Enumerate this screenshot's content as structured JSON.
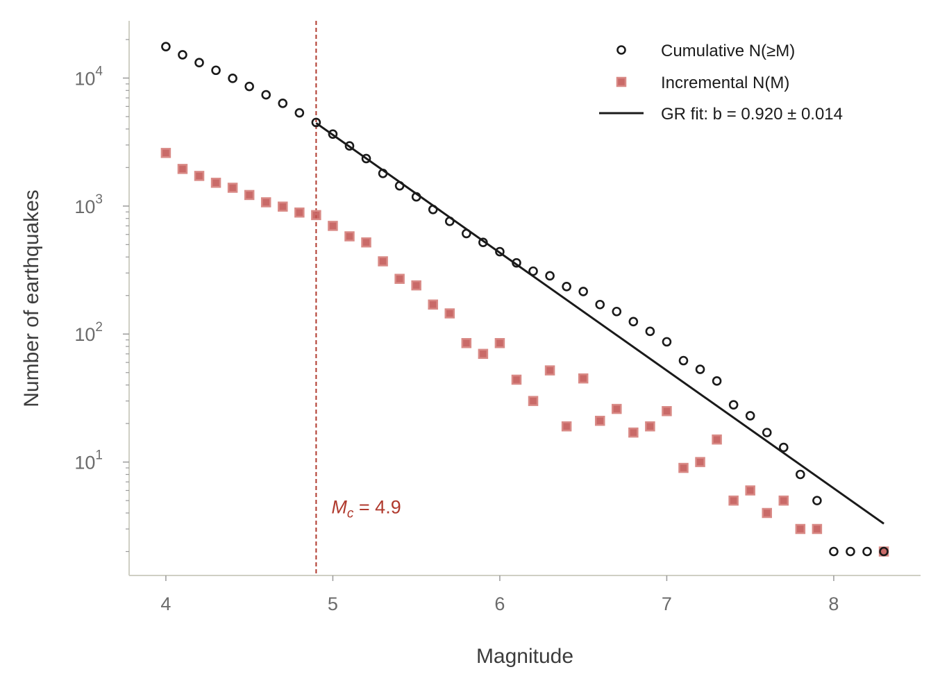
{
  "chart_data": {
    "type": "scatter",
    "title": "",
    "xlabel": "Magnitude",
    "ylabel": "Number of earthquakes",
    "xscale": "linear",
    "yscale": "log",
    "xlim": [
      3.78,
      8.52
    ],
    "ylim": [
      1.3,
      28000
    ],
    "xticks": [
      "4",
      "5",
      "6",
      "7",
      "8"
    ],
    "yticks": [
      "10",
      "10",
      "10",
      "10"
    ],
    "ytick_exponents": [
      "1",
      "2",
      "3",
      "4"
    ],
    "grid": false,
    "legend_position": "top-right",
    "series": [
      {
        "name": "Cumulative N(≥M)",
        "marker": "open-circle",
        "color": "#1a1a1a",
        "x": [
          4.0,
          4.1,
          4.2,
          4.3,
          4.4,
          4.5,
          4.6,
          4.7,
          4.8,
          4.9,
          5.0,
          5.1,
          5.2,
          5.3,
          5.4,
          5.5,
          5.6,
          5.7,
          5.8,
          5.9,
          6.0,
          6.1,
          6.2,
          6.3,
          6.4,
          6.5,
          6.6,
          6.7,
          6.8,
          6.9,
          7.0,
          7.1,
          7.2,
          7.3,
          7.4,
          7.5,
          7.6,
          7.7,
          7.8,
          7.9,
          8.0,
          8.1,
          8.2,
          8.3
        ],
        "y": [
          17600,
          15200,
          13200,
          11500,
          9950,
          8600,
          7400,
          6350,
          5350,
          4500,
          3650,
          2950,
          2350,
          1800,
          1440,
          1180,
          940,
          760,
          610,
          520,
          440,
          360,
          310,
          285,
          235,
          215,
          170,
          150,
          125,
          105,
          87,
          62,
          53,
          43,
          28,
          23,
          17,
          13,
          8,
          5,
          2,
          2,
          2,
          2
        ]
      },
      {
        "name": "Incremental N(M)",
        "marker": "square",
        "color": "#c0504d",
        "x": [
          4.0,
          4.1,
          4.2,
          4.3,
          4.4,
          4.5,
          4.6,
          4.7,
          4.8,
          4.9,
          5.0,
          5.1,
          5.2,
          5.3,
          5.4,
          5.5,
          5.6,
          5.7,
          5.8,
          5.9,
          6.0,
          6.1,
          6.2,
          6.3,
          6.4,
          6.5,
          6.6,
          6.7,
          6.8,
          6.9,
          7.0,
          7.1,
          7.2,
          7.3,
          7.4,
          7.5,
          7.6,
          7.7,
          7.8,
          7.9,
          8.3
        ],
        "y": [
          2600,
          1950,
          1720,
          1520,
          1390,
          1220,
          1070,
          990,
          890,
          850,
          700,
          580,
          520,
          370,
          270,
          240,
          170,
          145,
          85,
          70,
          85,
          44,
          30,
          52,
          19,
          45,
          21,
          26,
          17,
          19,
          25,
          9,
          10,
          15,
          5,
          6,
          4,
          5,
          3,
          3,
          2
        ]
      },
      {
        "name": "GR fit: b = 0.920 ± 0.014",
        "marker": "line",
        "color": "#1a1a1a",
        "x": [
          4.9,
          8.3
        ],
        "y": [
          4450,
          3.3
        ]
      }
    ],
    "annotations": {
      "mc_line": {
        "x": 4.9,
        "color": "#b03a2e",
        "style": "dashed"
      },
      "mc_label": {
        "symbol": "M",
        "subscript": "c",
        "value_text": " = 4.9",
        "x": 5.0,
        "y": 4.4,
        "color": "#b03a2e"
      }
    }
  }
}
